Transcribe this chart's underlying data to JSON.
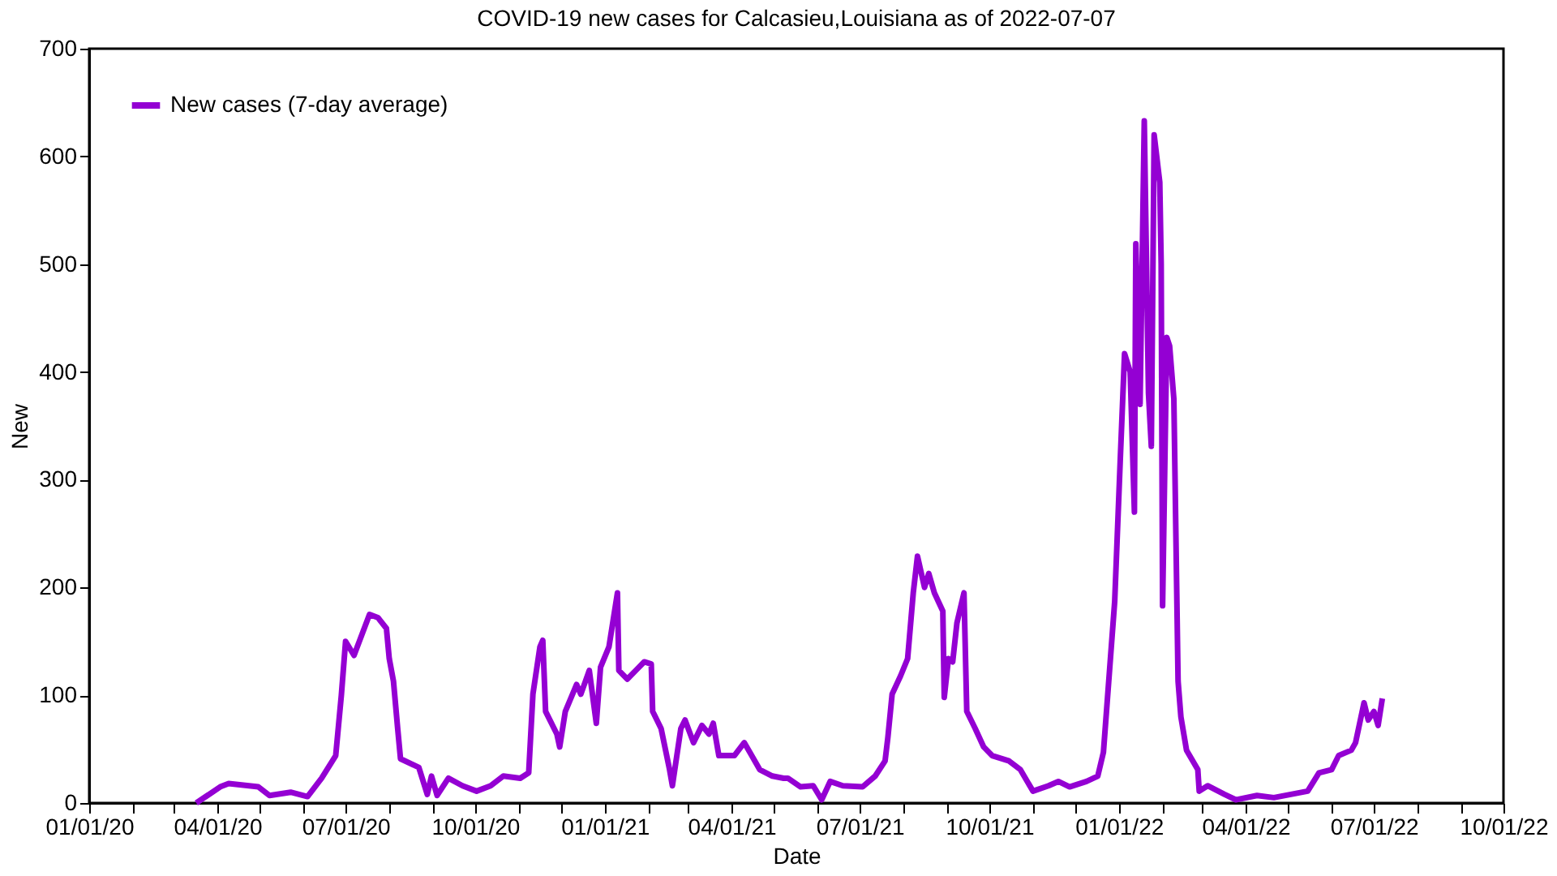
{
  "chart_data": {
    "type": "line",
    "title": "COVID-19 new cases for Calcasieu,Louisiana as of 2022-07-07",
    "xlabel": "Date",
    "ylabel": "New",
    "x": [
      "2020-03-17",
      "2020-04-03",
      "2020-04-09",
      "2020-04-30",
      "2020-05-08",
      "2020-05-23",
      "2020-06-04",
      "2020-06-14",
      "2020-06-24",
      "2020-06-28",
      "2020-07-01",
      "2020-07-07",
      "2020-07-18",
      "2020-07-24",
      "2020-07-30",
      "2020-08-01",
      "2020-08-04",
      "2020-08-07",
      "2020-08-09",
      "2020-08-22",
      "2020-08-28",
      "2020-08-31",
      "2020-09-04",
      "2020-09-12",
      "2020-09-22",
      "2020-10-02",
      "2020-10-12",
      "2020-10-21",
      "2020-11-02",
      "2020-11-08",
      "2020-11-11",
      "2020-11-16",
      "2020-11-18",
      "2020-11-20",
      "2020-11-28",
      "2020-11-30",
      "2020-12-04",
      "2020-12-12",
      "2020-12-15",
      "2020-12-21",
      "2020-12-26",
      "2020-12-29",
      "2021-01-04",
      "2021-01-10",
      "2021-01-11",
      "2021-01-17",
      "2021-01-23",
      "2021-01-29",
      "2021-02-03",
      "2021-02-04",
      "2021-02-10",
      "2021-02-16",
      "2021-02-18",
      "2021-02-24",
      "2021-02-27",
      "2021-03-05",
      "2021-03-11",
      "2021-03-16",
      "2021-03-19",
      "2021-03-23",
      "2021-04-03",
      "2021-04-10",
      "2021-04-14",
      "2021-04-21",
      "2021-04-30",
      "2021-05-08",
      "2021-05-11",
      "2021-05-20",
      "2021-05-29",
      "2021-06-04",
      "2021-06-10",
      "2021-06-19",
      "2021-07-03",
      "2021-07-12",
      "2021-07-19",
      "2021-07-21",
      "2021-07-24",
      "2021-07-30",
      "2021-08-04",
      "2021-08-08",
      "2021-08-11",
      "2021-08-16",
      "2021-08-19",
      "2021-08-23",
      "2021-08-29",
      "2021-08-30",
      "2021-09-02",
      "2021-09-05",
      "2021-09-08",
      "2021-09-13",
      "2021-09-15",
      "2021-09-21",
      "2021-09-27",
      "2021-10-03",
      "2021-10-15",
      "2021-10-23",
      "2021-11-01",
      "2021-11-12",
      "2021-11-19",
      "2021-11-27",
      "2021-12-09",
      "2021-12-17",
      "2021-12-21",
      "2021-12-29",
      "2022-01-02",
      "2022-01-05",
      "2022-01-09",
      "2022-01-12",
      "2022-01-13",
      "2022-01-16",
      "2022-01-19",
      "2022-01-22",
      "2022-01-24",
      "2022-01-26",
      "2022-01-30",
      "2022-01-31",
      "2022-02-01",
      "2022-02-04",
      "2022-02-06",
      "2022-02-09",
      "2022-02-12",
      "2022-02-14",
      "2022-02-18",
      "2022-02-26",
      "2022-02-27",
      "2022-03-05",
      "2022-03-17",
      "2022-03-25",
      "2022-04-09",
      "2022-04-21",
      "2022-05-03",
      "2022-05-15",
      "2022-05-23",
      "2022-06-01",
      "2022-06-06",
      "2022-06-15",
      "2022-06-18",
      "2022-06-24",
      "2022-06-27",
      "2022-07-01",
      "2022-07-04",
      "2022-07-07"
    ],
    "series": [
      {
        "name": "New cases (7-day average)",
        "color": "#9400d3",
        "values": [
          0,
          15,
          18,
          15,
          7,
          10,
          6,
          23,
          44,
          100,
          150,
          137,
          175,
          172,
          162,
          134,
          113,
          69,
          41,
          33,
          8,
          25,
          7,
          23,
          16,
          11,
          16,
          25,
          23,
          28,
          101,
          145,
          151,
          85,
          64,
          52,
          85,
          110,
          101,
          123,
          74,
          126,
          145,
          195,
          123,
          115,
          123,
          131,
          129,
          85,
          69,
          31,
          16,
          69,
          77,
          56,
          72,
          64,
          74,
          44,
          44,
          56,
          47,
          31,
          25,
          23,
          23,
          15,
          16,
          3,
          20,
          16,
          15,
          25,
          39,
          61,
          101,
          118,
          134,
          195,
          229,
          200,
          213,
          195,
          178,
          98,
          134,
          131,
          167,
          195,
          85,
          69,
          52,
          44,
          39,
          31,
          11,
          16,
          20,
          15,
          20,
          25,
          47,
          187,
          320,
          417,
          400,
          270,
          519,
          370,
          633,
          380,
          331,
          620,
          576,
          500,
          183,
          432,
          424,
          375,
          113,
          80,
          49,
          31,
          11,
          16,
          8,
          3,
          7,
          5,
          8,
          11,
          28,
          31,
          44,
          49,
          56,
          93,
          77,
          85,
          72,
          97
        ]
      }
    ],
    "xlim": [
      "2020-01-01",
      "2022-10-01"
    ],
    "xticks": [
      {
        "value": "2020-01-01",
        "label": "01/01/20"
      },
      {
        "value": "2020-02-01",
        "label": null
      },
      {
        "value": "2020-03-01",
        "label": null
      },
      {
        "value": "2020-04-01",
        "label": "04/01/20"
      },
      {
        "value": "2020-05-01",
        "label": null
      },
      {
        "value": "2020-06-01",
        "label": null
      },
      {
        "value": "2020-07-01",
        "label": "07/01/20"
      },
      {
        "value": "2020-08-01",
        "label": null
      },
      {
        "value": "2020-09-01",
        "label": null
      },
      {
        "value": "2020-10-01",
        "label": "10/01/20"
      },
      {
        "value": "2020-11-01",
        "label": null
      },
      {
        "value": "2020-12-01",
        "label": null
      },
      {
        "value": "2021-01-01",
        "label": "01/01/21"
      },
      {
        "value": "2021-02-01",
        "label": null
      },
      {
        "value": "2021-03-01",
        "label": null
      },
      {
        "value": "2021-04-01",
        "label": "04/01/21"
      },
      {
        "value": "2021-05-01",
        "label": null
      },
      {
        "value": "2021-06-01",
        "label": null
      },
      {
        "value": "2021-07-01",
        "label": "07/01/21"
      },
      {
        "value": "2021-08-01",
        "label": null
      },
      {
        "value": "2021-09-01",
        "label": null
      },
      {
        "value": "2021-10-01",
        "label": "10/01/21"
      },
      {
        "value": "2021-11-01",
        "label": null
      },
      {
        "value": "2021-12-01",
        "label": null
      },
      {
        "value": "2022-01-01",
        "label": "01/01/22"
      },
      {
        "value": "2022-02-01",
        "label": null
      },
      {
        "value": "2022-03-01",
        "label": null
      },
      {
        "value": "2022-04-01",
        "label": "04/01/22"
      },
      {
        "value": "2022-05-01",
        "label": null
      },
      {
        "value": "2022-06-01",
        "label": null
      },
      {
        "value": "2022-07-01",
        "label": "07/01/22"
      },
      {
        "value": "2022-08-01",
        "label": null
      },
      {
        "value": "2022-09-01",
        "label": null
      },
      {
        "value": "2022-10-01",
        "label": "10/01/22"
      }
    ],
    "ylim": [
      0,
      700
    ],
    "yticks": [
      0,
      100,
      200,
      300,
      400,
      500,
      600,
      700
    ],
    "grid": false,
    "legend": "top left",
    "marker": "none",
    "line_style": "solid"
  }
}
